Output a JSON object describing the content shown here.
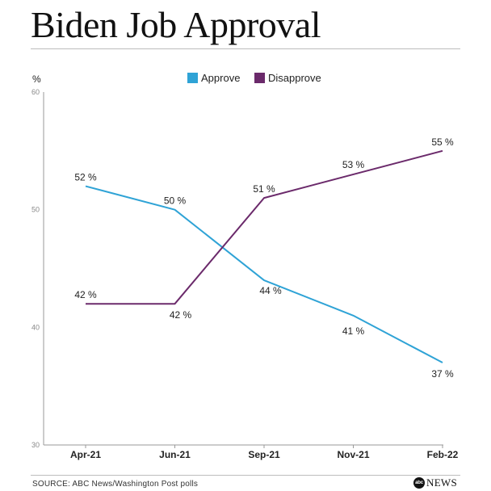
{
  "title": "Biden Job Approval",
  "source": "SOURCE: ABC News/Washington Post polls",
  "logo": {
    "mark": "abc",
    "text": "NEWS"
  },
  "colors": {
    "approve": "#2fa3d6",
    "disapprove": "#6b2a6b",
    "axis": "#999999",
    "tick_text": "#888888"
  },
  "chart_data": {
    "type": "line",
    "y_unit_label": "%",
    "categories": [
      "Apr-21",
      "Jun-21",
      "Sep-21",
      "Nov-21",
      "Feb-22"
    ],
    "ylim": [
      30,
      60
    ],
    "yticks": [
      30,
      40,
      50,
      60
    ],
    "grid": false,
    "legend_position": "top-center",
    "series": [
      {
        "name": "Approve",
        "color": "#2fa3d6",
        "values": [
          52,
          50,
          44,
          41,
          37
        ],
        "labels": [
          "52 %",
          "50 %",
          "44 %",
          "41 %",
          "37 %"
        ]
      },
      {
        "name": "Disapprove",
        "color": "#6b2a6b",
        "values": [
          42,
          42,
          51,
          53,
          55
        ],
        "labels": [
          "42 %",
          "42 %",
          "51 %",
          "53 %",
          "55 %"
        ]
      }
    ]
  }
}
